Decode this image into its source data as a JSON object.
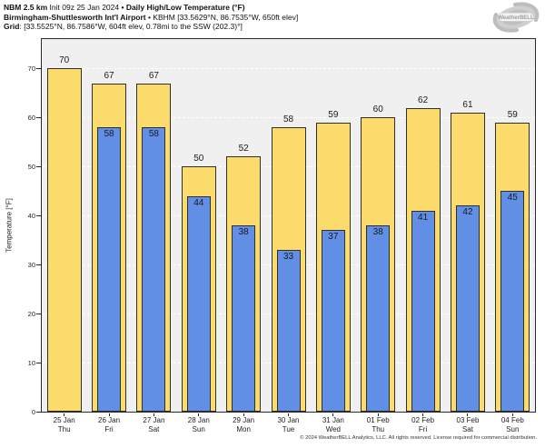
{
  "header": {
    "line1": {
      "model": "NBM 2.5 km",
      "init": " Init 09z 25 Jan 2024 ",
      "sep": "•",
      "product": " Daily High/Low Temperature (°F)"
    },
    "line2": {
      "station": "Birmingham-Shuttlesworth Int'l Airport",
      "sep": " • ",
      "station_info": "KBHM [33.5629°N, 86.7535°W, 650ft elev]"
    },
    "line3": {
      "label": "Grid",
      "value": ": [33.5525°N, 86.7586°W, 604ft elev, 0.78mi to the SSW (202.3)°]"
    }
  },
  "logo": {
    "text": "WeatherBELL"
  },
  "chart_data": {
    "type": "bar",
    "title": "Daily High/Low Temperature (°F)",
    "categories": [
      {
        "date": "25 Jan",
        "day": "Thu"
      },
      {
        "date": "26 Jan",
        "day": "Fri"
      },
      {
        "date": "27 Jan",
        "day": "Sat"
      },
      {
        "date": "28 Jan",
        "day": "Sun"
      },
      {
        "date": "29 Jan",
        "day": "Mon"
      },
      {
        "date": "30 Jan",
        "day": "Tue"
      },
      {
        "date": "31 Jan",
        "day": "Wed"
      },
      {
        "date": "01 Feb",
        "day": "Thu"
      },
      {
        "date": "02 Feb",
        "day": "Fri"
      },
      {
        "date": "03 Feb",
        "day": "Sat"
      },
      {
        "date": "04 Feb",
        "day": "Sun"
      }
    ],
    "series": [
      {
        "name": "High",
        "color": "#FCDB6D",
        "values": [
          70,
          67,
          67,
          50,
          52,
          58,
          59,
          60,
          62,
          61,
          59
        ]
      },
      {
        "name": "Low",
        "color": "#608FE5",
        "values": [
          null,
          58,
          58,
          44,
          38,
          33,
          37,
          38,
          41,
          42,
          45
        ]
      }
    ],
    "ylabel": "Temperature [°F]",
    "yticks": [
      0,
      10,
      20,
      30,
      40,
      50,
      60,
      70
    ],
    "ylim": [
      0,
      76
    ],
    "grid": "horizontal-dashed",
    "legend": "none",
    "plot_bg": "#F0F0F0",
    "grid_color": "#FFFFFF",
    "bar_border_color": "#2F2F2F",
    "high_bar_width": 38,
    "low_bar_width": 26
  },
  "footer": {
    "copyright": "© 2024 WeatherBELL Analytics, LLC. All rights reserved. License required for commercial distribution."
  }
}
